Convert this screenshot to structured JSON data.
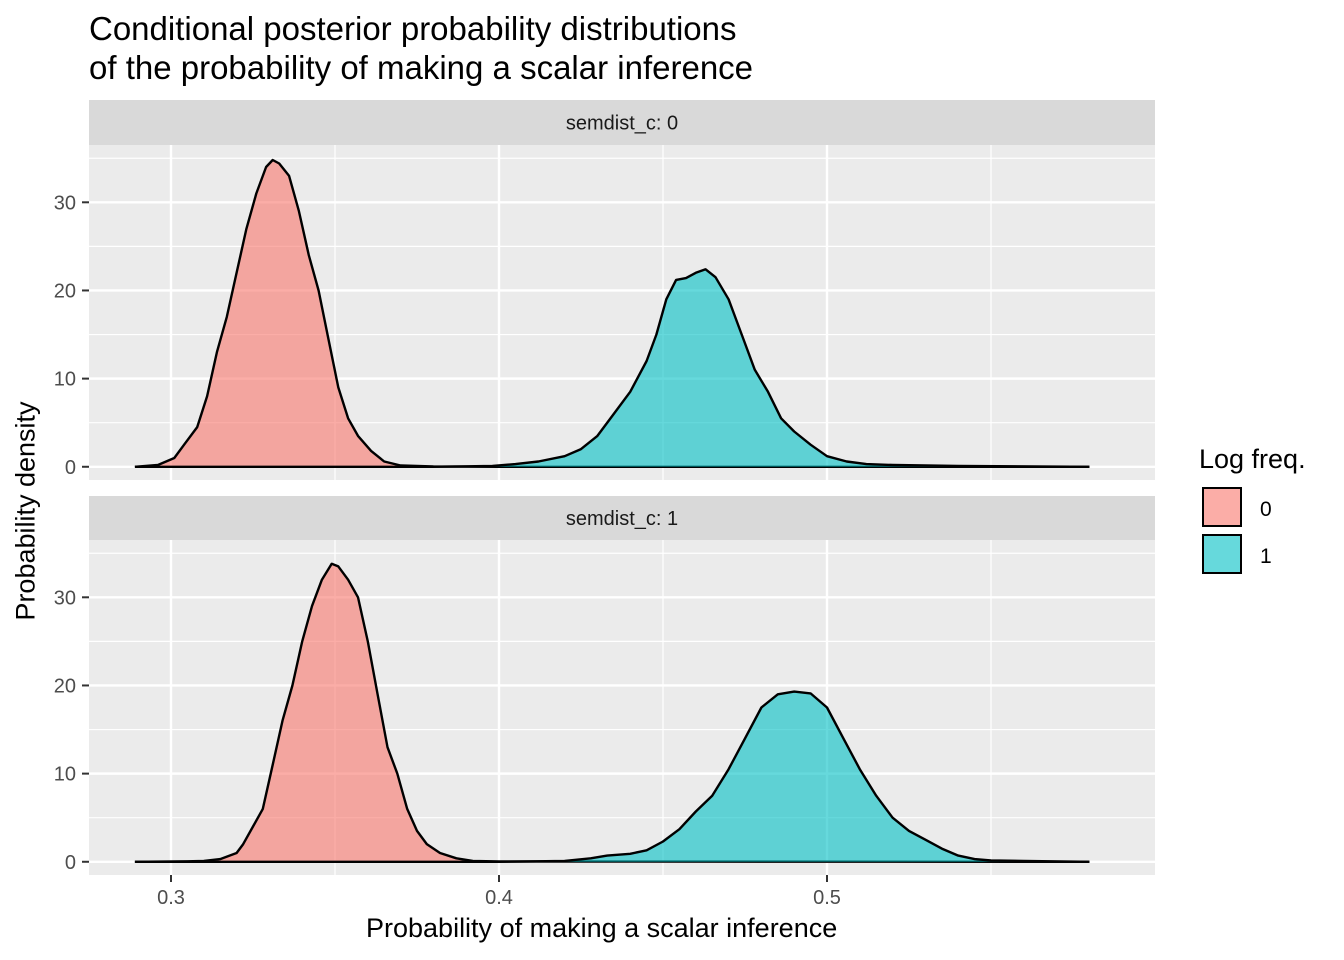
{
  "title_lines": [
    "Conditional posterior probability distributions",
    "of the probability of making a scalar inference"
  ],
  "legend": {
    "title": "Log freq.",
    "entries": [
      {
        "label": "0",
        "color": "#F8766D"
      },
      {
        "label": "1",
        "color": "#00BFC4"
      }
    ]
  },
  "chart_data": {
    "type": "area",
    "chart_kind": "density",
    "title": "Conditional posterior probability distributions of the probability of making a scalar inference",
    "xlabel": "Probability of making a scalar inference",
    "ylabel": "Probability density",
    "xlim": [
      0.275,
      0.6
    ],
    "ylim": [
      -1.5,
      36.5
    ],
    "x_ticks": [
      0.3,
      0.4,
      0.5
    ],
    "x_tick_labels": [
      "0.3",
      "0.4",
      "0.5"
    ],
    "y_ticks": [
      0,
      10,
      20,
      30
    ],
    "y_tick_labels": [
      "0",
      "10",
      "20",
      "30"
    ],
    "grid": true,
    "legend_position": "right",
    "fill_alpha": 0.6,
    "facets": [
      {
        "label": "semdist_c: 0",
        "series": [
          {
            "name": "0",
            "color": "#F8766D",
            "points": [
              [
                0.289,
                0
              ],
              [
                0.296,
                0.2
              ],
              [
                0.301,
                1
              ],
              [
                0.304,
                2.5
              ],
              [
                0.308,
                4.5
              ],
              [
                0.311,
                8
              ],
              [
                0.314,
                13
              ],
              [
                0.317,
                17
              ],
              [
                0.32,
                22
              ],
              [
                0.323,
                27
              ],
              [
                0.326,
                31
              ],
              [
                0.329,
                34
              ],
              [
                0.331,
                34.8
              ],
              [
                0.333,
                34.4
              ],
              [
                0.336,
                33
              ],
              [
                0.339,
                29
              ],
              [
                0.342,
                24
              ],
              [
                0.345,
                20
              ],
              [
                0.348,
                14.5
              ],
              [
                0.351,
                9
              ],
              [
                0.354,
                5.5
              ],
              [
                0.357,
                3.5
              ],
              [
                0.361,
                1.8
              ],
              [
                0.365,
                0.6
              ],
              [
                0.37,
                0.15
              ],
              [
                0.38,
                0.03
              ],
              [
                0.4,
                0
              ],
              [
                0.58,
                0
              ]
            ]
          },
          {
            "name": "1",
            "color": "#00BFC4",
            "points": [
              [
                0.289,
                0
              ],
              [
                0.38,
                0
              ],
              [
                0.398,
                0.1
              ],
              [
                0.405,
                0.3
              ],
              [
                0.412,
                0.6
              ],
              [
                0.42,
                1.2
              ],
              [
                0.425,
                2
              ],
              [
                0.43,
                3.5
              ],
              [
                0.435,
                6
              ],
              [
                0.44,
                8.5
              ],
              [
                0.445,
                12
              ],
              [
                0.448,
                15
              ],
              [
                0.451,
                19
              ],
              [
                0.454,
                21.2
              ],
              [
                0.457,
                21.4
              ],
              [
                0.46,
                22
              ],
              [
                0.463,
                22.4
              ],
              [
                0.466,
                21.5
              ],
              [
                0.47,
                19
              ],
              [
                0.474,
                15
              ],
              [
                0.478,
                11
              ],
              [
                0.482,
                8.5
              ],
              [
                0.486,
                5.5
              ],
              [
                0.49,
                4
              ],
              [
                0.495,
                2.5
              ],
              [
                0.5,
                1.2
              ],
              [
                0.506,
                0.6
              ],
              [
                0.512,
                0.3
              ],
              [
                0.52,
                0.2
              ],
              [
                0.54,
                0.1
              ],
              [
                0.58,
                0
              ]
            ]
          }
        ]
      },
      {
        "label": "semdist_c: 1",
        "series": [
          {
            "name": "0",
            "color": "#F8766D",
            "points": [
              [
                0.289,
                0
              ],
              [
                0.305,
                0.05
              ],
              [
                0.31,
                0.1
              ],
              [
                0.315,
                0.3
              ],
              [
                0.32,
                1
              ],
              [
                0.322,
                2
              ],
              [
                0.325,
                4
              ],
              [
                0.328,
                6
              ],
              [
                0.331,
                11
              ],
              [
                0.334,
                16
              ],
              [
                0.337,
                20
              ],
              [
                0.34,
                25
              ],
              [
                0.343,
                29
              ],
              [
                0.346,
                32
              ],
              [
                0.349,
                33.8
              ],
              [
                0.351,
                33.5
              ],
              [
                0.354,
                32
              ],
              [
                0.357,
                30
              ],
              [
                0.36,
                25
              ],
              [
                0.363,
                19
              ],
              [
                0.366,
                13
              ],
              [
                0.369,
                10
              ],
              [
                0.372,
                6
              ],
              [
                0.375,
                3.5
              ],
              [
                0.378,
                2
              ],
              [
                0.382,
                1
              ],
              [
                0.387,
                0.4
              ],
              [
                0.392,
                0.1
              ],
              [
                0.4,
                0.03
              ],
              [
                0.58,
                0
              ]
            ]
          },
          {
            "name": "1",
            "color": "#00BFC4",
            "points": [
              [
                0.289,
                0
              ],
              [
                0.4,
                0
              ],
              [
                0.42,
                0.1
              ],
              [
                0.428,
                0.4
              ],
              [
                0.433,
                0.7
              ],
              [
                0.44,
                0.9
              ],
              [
                0.445,
                1.3
              ],
              [
                0.45,
                2.3
              ],
              [
                0.455,
                3.7
              ],
              [
                0.46,
                5.7
              ],
              [
                0.465,
                7.5
              ],
              [
                0.47,
                10.5
              ],
              [
                0.475,
                14
              ],
              [
                0.48,
                17.5
              ],
              [
                0.485,
                19
              ],
              [
                0.49,
                19.3
              ],
              [
                0.495,
                19.1
              ],
              [
                0.5,
                17.5
              ],
              [
                0.505,
                14
              ],
              [
                0.51,
                10.5
              ],
              [
                0.515,
                7.5
              ],
              [
                0.52,
                5
              ],
              [
                0.525,
                3.5
              ],
              [
                0.53,
                2.5
              ],
              [
                0.535,
                1.5
              ],
              [
                0.54,
                0.7
              ],
              [
                0.545,
                0.3
              ],
              [
                0.55,
                0.15
              ],
              [
                0.56,
                0.1
              ],
              [
                0.58,
                0
              ]
            ]
          }
        ]
      }
    ]
  }
}
